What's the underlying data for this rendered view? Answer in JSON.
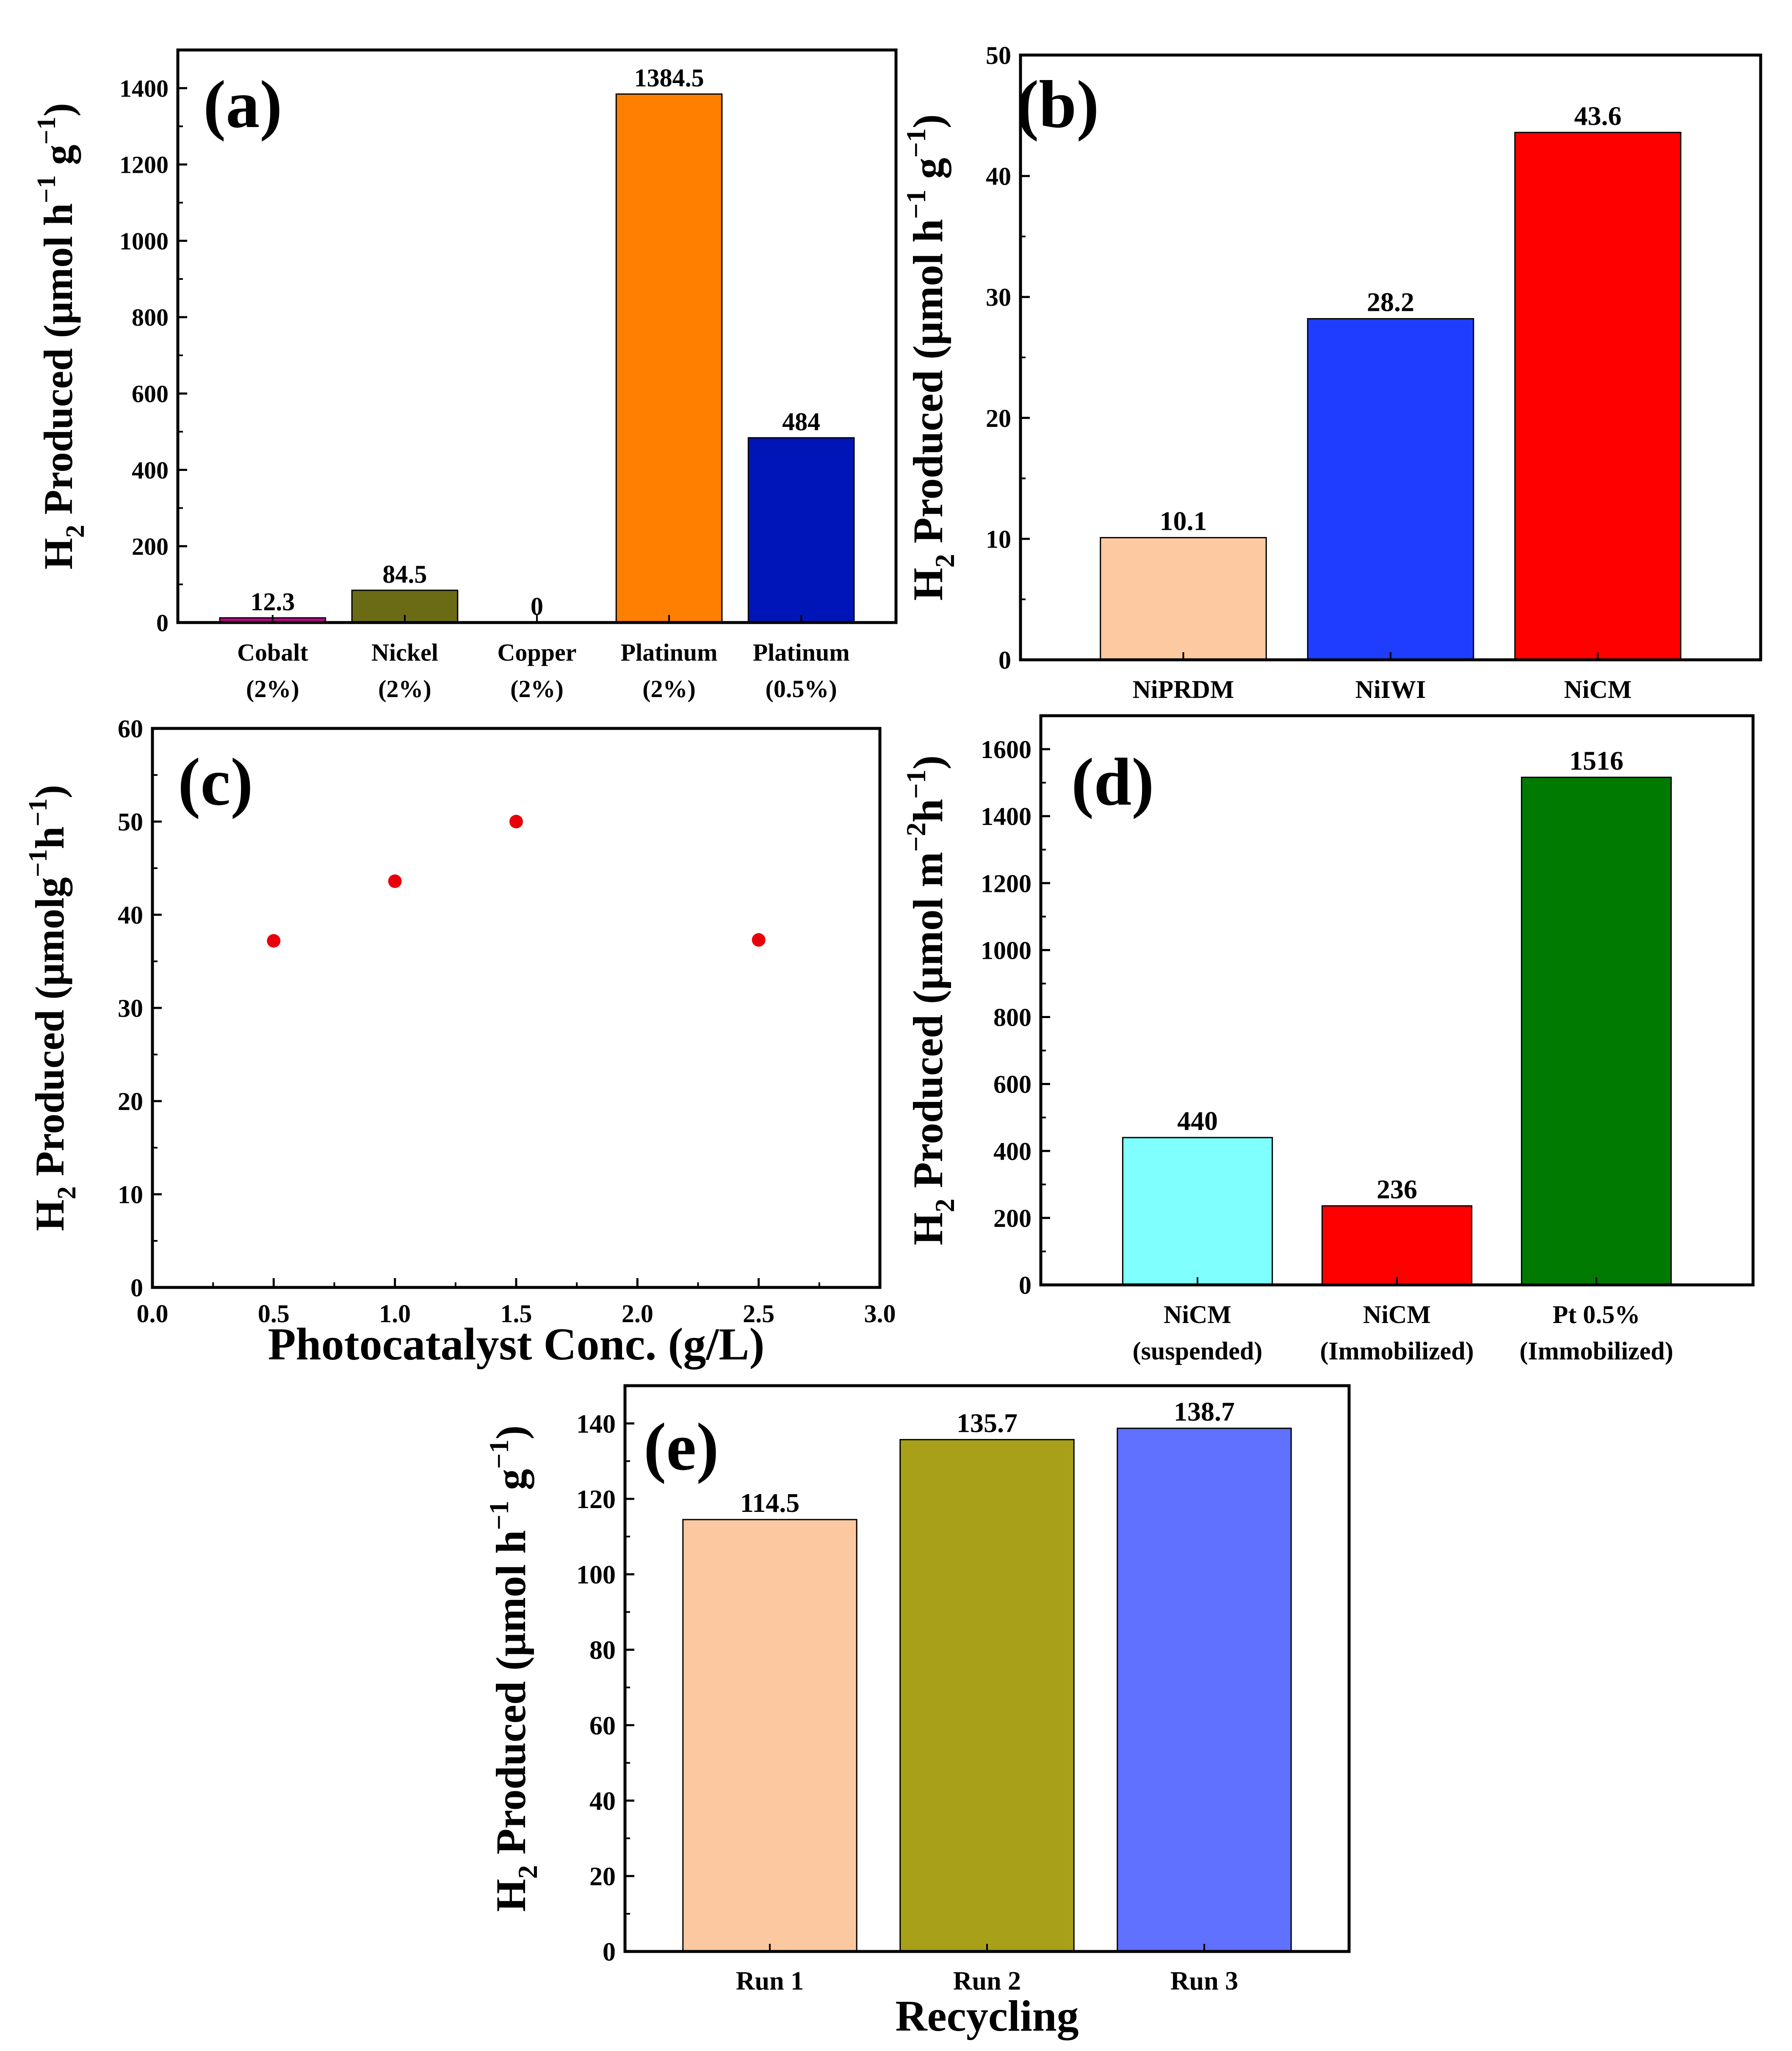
{
  "chart_data": [
    {
      "panel_label": "(a)",
      "type": "bar",
      "categories": [
        [
          "Cobalt",
          "(2%)"
        ],
        [
          "Nickel",
          "(2%)"
        ],
        [
          "Copper",
          "(2%)"
        ],
        [
          "Platinum",
          "(2%)"
        ],
        [
          "Platinum",
          "(0.5%)"
        ]
      ],
      "values": [
        12.3,
        84.5,
        0,
        1384.5,
        484
      ],
      "value_labels": [
        "12.3",
        "84.5",
        "0",
        "1384.5",
        "484"
      ],
      "colors": [
        "#c0008a",
        "#6b6b16",
        "#cccccc",
        "#ff8000",
        "#0015b8"
      ],
      "ylim": [
        0,
        1500
      ],
      "yticks": [
        0,
        200,
        400,
        600,
        800,
        1000,
        1200,
        1400
      ],
      "ylabel": {
        "prefix": "H",
        "sub": "2",
        "text": " Produced (μmol h",
        "sup1": "−1",
        "mid": " g",
        "sup2": "−1",
        "suffix": ")"
      },
      "xlabel": ""
    },
    {
      "panel_label": "(b)",
      "type": "bar",
      "categories": [
        [
          "NiPRDM"
        ],
        [
          "NiIWI"
        ],
        [
          "NiCM"
        ]
      ],
      "values": [
        10.1,
        28.2,
        43.6
      ],
      "value_labels": [
        "10.1",
        "28.2",
        "43.6"
      ],
      "colors": [
        "#fcc9a0",
        "#1f3dff",
        "#ff0000"
      ],
      "ylim": [
        0,
        50
      ],
      "yticks": [
        0,
        10,
        20,
        30,
        40,
        50
      ],
      "ylabel": {
        "prefix": "H",
        "sub": "2",
        "text": " Produced (μmol h",
        "sup1": "−1",
        "mid": " g",
        "sup2": "−1",
        "suffix": ")"
      },
      "xlabel": ""
    },
    {
      "panel_label": "(c)",
      "type": "scatter",
      "x": [
        0.5,
        1.0,
        1.5,
        2.5
      ],
      "y": [
        37.2,
        43.6,
        50.0,
        37.3
      ],
      "color": "#e8000b",
      "xlim": [
        0,
        3.0
      ],
      "xticks": [
        "0.0",
        "0.5",
        "1.0",
        "1.5",
        "2.0",
        "2.5",
        "3.0"
      ],
      "ylim": [
        0,
        60
      ],
      "yticks": [
        0,
        10,
        20,
        30,
        40,
        50,
        60
      ],
      "ylabel": {
        "prefix": "H",
        "sub": "2",
        "text": " Produced (μmolg",
        "sup1": "−1",
        "mid": "h",
        "sup2": "−1",
        "suffix": ")"
      },
      "xlabel": "Photocatalyst Conc. (g/L)"
    },
    {
      "panel_label": "(d)",
      "type": "bar",
      "categories": [
        [
          "NiCM",
          "(suspended)"
        ],
        [
          "NiCM",
          "(Immobilized)"
        ],
        [
          "Pt 0.5%",
          "(Immobilized)"
        ]
      ],
      "values": [
        440,
        236,
        1516
      ],
      "value_labels": [
        "440",
        "236",
        "1516"
      ],
      "colors": [
        "#80ffff",
        "#ff0000",
        "#007a00"
      ],
      "ylim": [
        0,
        1700
      ],
      "yticks": [
        0,
        200,
        400,
        600,
        800,
        1000,
        1200,
        1400,
        1600
      ],
      "ylabel": {
        "prefix": "H",
        "sub": "2",
        "text": " Produced (μmol m",
        "sup1": "−2",
        "mid": "h",
        "sup2": "−1",
        "suffix": ")"
      },
      "xlabel": ""
    },
    {
      "panel_label": "(e)",
      "type": "bar",
      "categories": [
        [
          "Run 1"
        ],
        [
          "Run 2"
        ],
        [
          "Run 3"
        ]
      ],
      "values": [
        114.5,
        135.7,
        138.7
      ],
      "value_labels": [
        "114.5",
        "135.7",
        "138.7"
      ],
      "colors": [
        "#fcc8a0",
        "#a8a018",
        "#6070ff"
      ],
      "ylim": [
        0,
        150
      ],
      "yticks": [
        0,
        20,
        40,
        60,
        80,
        100,
        120,
        140
      ],
      "ylabel": {
        "prefix": "H",
        "sub": "2",
        "text": " Produced (μmol h",
        "sup1": "−1",
        "mid": " g",
        "sup2": "−1",
        "suffix": ")"
      },
      "xlabel": "Recycling"
    }
  ]
}
